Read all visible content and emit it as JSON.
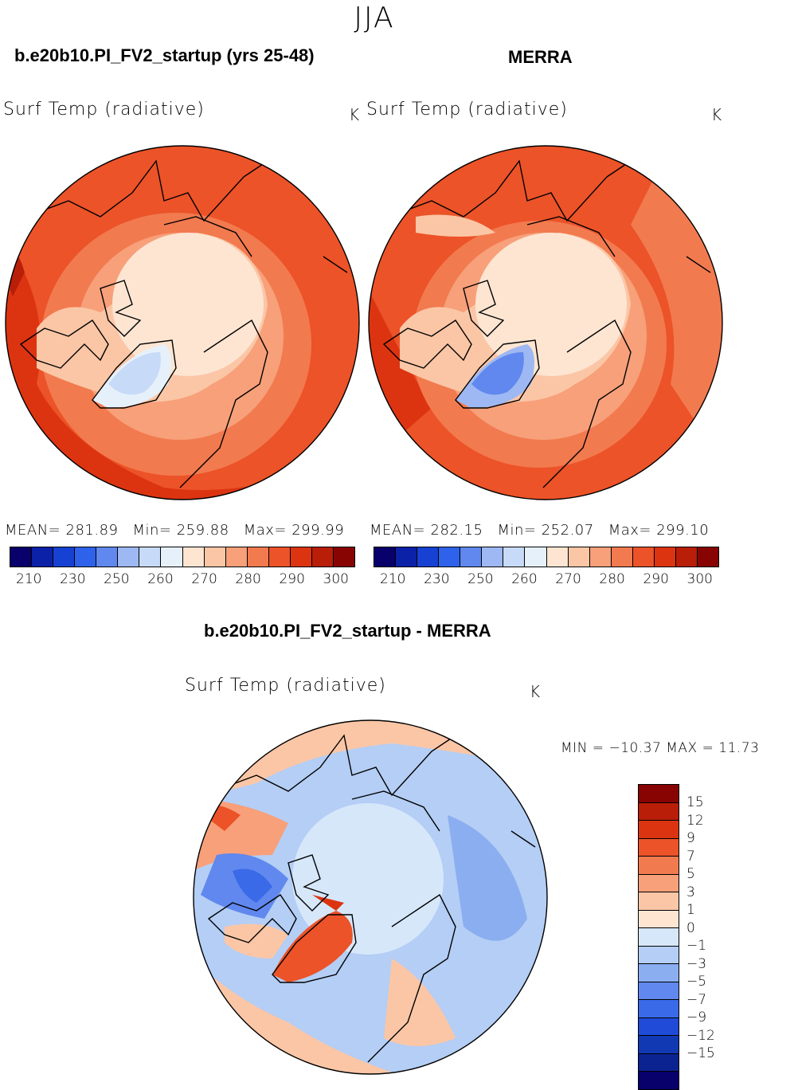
{
  "season": "JJA",
  "panels": [
    {
      "case_title": "b.e20b10.PI_FV2_startup (yrs 25-48)",
      "variable": "Surf Temp (radiative)",
      "units": "K",
      "stats": {
        "mean_label": "MEAN= 281.89",
        "min_label": "Min= 259.88",
        "max_label": "Max= 299.99"
      }
    },
    {
      "case_title": "MERRA",
      "variable": "Surf Temp (radiative)",
      "units": "K",
      "stats": {
        "mean_label": "MEAN= 282.15",
        "min_label": "Min= 252.07",
        "max_label": "Max= 299.10"
      }
    }
  ],
  "diff": {
    "title": "b.e20b10.PI_FV2_startup - MERRA",
    "variable": "Surf Temp (radiative)",
    "units": "K",
    "minmax_label": "MIN = −10.37 MAX =   11.73"
  },
  "abs_colorbar": {
    "colors": [
      "#08006b",
      "#0a21a8",
      "#1641d2",
      "#2f62ea",
      "#6088ee",
      "#9eb8f3",
      "#c7daf7",
      "#e6f0fa",
      "#fde5d2",
      "#fbc6a6",
      "#f7a07a",
      "#f27a4f",
      "#ec5328",
      "#dc3411",
      "#b81e08",
      "#870403"
    ],
    "ticks": [
      "210",
      "230",
      "250",
      "260",
      "270",
      "280",
      "290",
      "300"
    ]
  },
  "diff_colorbar": {
    "colors": [
      "#870403",
      "#b81e08",
      "#dc3411",
      "#ec5328",
      "#f27a4f",
      "#f7a07a",
      "#fbc6a6",
      "#fde5d2",
      "#d6e7fa",
      "#b4cef5",
      "#8aaef0",
      "#6088ee",
      "#3a6ae8",
      "#1f4bd8",
      "#1239b4",
      "#0a2390",
      "#08006b"
    ],
    "ticks": [
      "15",
      "12",
      "9",
      "7",
      "5",
      "3",
      "1",
      "0",
      "−1",
      "−3",
      "−5",
      "−7",
      "−9",
      "−12",
      "−15"
    ]
  }
}
